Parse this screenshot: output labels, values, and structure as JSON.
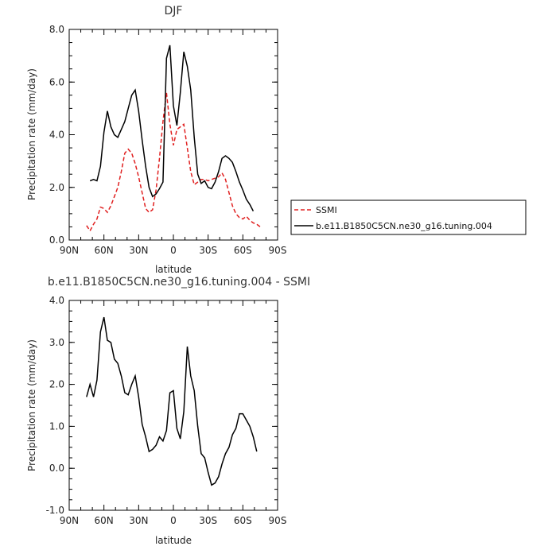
{
  "chart_data": [
    {
      "type": "line",
      "title": "DJF",
      "xlabel": "latitude",
      "ylabel": "Precipitation rate (mm/day)",
      "xlim": [
        90,
        -90
      ],
      "ylim": [
        0.0,
        8.0
      ],
      "xticks": [
        {
          "v": 90,
          "label": "90N"
        },
        {
          "v": 60,
          "label": "60N"
        },
        {
          "v": 30,
          "label": "30N"
        },
        {
          "v": 0,
          "label": "0"
        },
        {
          "v": -30,
          "label": "30S"
        },
        {
          "v": -60,
          "label": "60S"
        },
        {
          "v": -90,
          "label": "90S"
        }
      ],
      "yticks": [
        {
          "v": 0.0,
          "label": "0.0"
        },
        {
          "v": 2.0,
          "label": "2.0"
        },
        {
          "v": 4.0,
          "label": "4.0"
        },
        {
          "v": 6.0,
          "label": "6.0"
        },
        {
          "v": 8.0,
          "label": "8.0"
        }
      ],
      "grid": false,
      "legend": "right, outside plot",
      "series": [
        {
          "name": "SSMI",
          "color": "#e02020",
          "dash": true,
          "x": [
            75,
            72,
            69,
            66,
            63,
            60,
            57,
            54,
            51,
            48,
            45,
            42,
            39,
            36,
            33,
            30,
            27,
            24,
            21,
            18,
            15,
            12,
            9,
            6,
            3,
            0,
            -3,
            -6,
            -9,
            -12,
            -15,
            -18,
            -21,
            -24,
            -27,
            -30,
            -33,
            -36,
            -39,
            -42,
            -45,
            -48,
            -51,
            -54,
            -57,
            -60,
            -63,
            -66,
            -69,
            -72,
            -75
          ],
          "values": [
            0.55,
            0.35,
            0.6,
            0.8,
            1.25,
            1.2,
            1.05,
            1.3,
            1.65,
            2.0,
            2.6,
            3.3,
            3.45,
            3.3,
            2.9,
            2.4,
            1.8,
            1.2,
            1.05,
            1.15,
            1.9,
            3.1,
            4.5,
            5.6,
            4.4,
            3.6,
            4.2,
            4.3,
            4.4,
            3.5,
            2.6,
            2.1,
            2.2,
            2.3,
            2.3,
            2.25,
            2.3,
            2.35,
            2.4,
            2.55,
            2.3,
            1.8,
            1.3,
            1.0,
            0.85,
            0.8,
            0.9,
            0.75,
            0.65,
            0.6,
            0.5
          ]
        },
        {
          "name": "b.e11.B1850C5CN.ne30_g16.tuning.004",
          "color": "#000000",
          "dash": false,
          "x": [
            72,
            69,
            66,
            63,
            60,
            57,
            54,
            51,
            48,
            45,
            42,
            39,
            36,
            33,
            30,
            27,
            24,
            21,
            18,
            15,
            12,
            9,
            6,
            3,
            0,
            -3,
            -6,
            -9,
            -12,
            -15,
            -18,
            -21,
            -24,
            -27,
            -30,
            -33,
            -36,
            -39,
            -42,
            -45,
            -48,
            -51,
            -54,
            -57,
            -60,
            -63,
            -66,
            -69
          ],
          "values": [
            2.25,
            2.3,
            2.25,
            2.8,
            4.1,
            4.9,
            4.3,
            4.0,
            3.9,
            4.2,
            4.5,
            5.0,
            5.5,
            5.7,
            4.9,
            3.8,
            2.8,
            2.0,
            1.65,
            1.75,
            1.95,
            2.2,
            6.9,
            7.4,
            5.1,
            4.35,
            5.6,
            7.15,
            6.6,
            5.7,
            3.9,
            2.5,
            2.15,
            2.25,
            2.0,
            1.95,
            2.2,
            2.6,
            3.1,
            3.2,
            3.1,
            2.95,
            2.6,
            2.2,
            1.9,
            1.55,
            1.35,
            1.1
          ]
        }
      ]
    },
    {
      "type": "line",
      "title": "b.e11.B1850C5CN.ne30_g16.tuning.004 - SSMI",
      "xlabel": "latitude",
      "ylabel": "Precipitation rate (mm/day)",
      "xlim": [
        90,
        -90
      ],
      "ylim": [
        -1.0,
        4.0
      ],
      "xticks": [
        {
          "v": 90,
          "label": "90N"
        },
        {
          "v": 60,
          "label": "60N"
        },
        {
          "v": 30,
          "label": "30N"
        },
        {
          "v": 0,
          "label": "0"
        },
        {
          "v": -30,
          "label": "30S"
        },
        {
          "v": -60,
          "label": "60S"
        },
        {
          "v": -90,
          "label": "90S"
        }
      ],
      "yticks": [
        {
          "v": -1.0,
          "label": "-1.0"
        },
        {
          "v": 0.0,
          "label": "0.0"
        },
        {
          "v": 1.0,
          "label": "1.0"
        },
        {
          "v": 2.0,
          "label": "2.0"
        },
        {
          "v": 3.0,
          "label": "3.0"
        },
        {
          "v": 4.0,
          "label": "4.0"
        }
      ],
      "grid": false,
      "series": [
        {
          "color": "#000000",
          "dash": false,
          "x": [
            75,
            72,
            69,
            66,
            63,
            60,
            57,
            54,
            51,
            48,
            45,
            42,
            39,
            36,
            33,
            30,
            27,
            24,
            21,
            18,
            15,
            12,
            9,
            6,
            3,
            0,
            -3,
            -6,
            -9,
            -12,
            -15,
            -18,
            -21,
            -24,
            -27,
            -30,
            -33,
            -36,
            -39,
            -42,
            -45,
            -48,
            -51,
            -54,
            -57,
            -60,
            -63,
            -66,
            -69,
            -72
          ],
          "values": [
            1.7,
            2.0,
            1.7,
            2.1,
            3.25,
            3.6,
            3.05,
            3.0,
            2.6,
            2.5,
            2.2,
            1.8,
            1.75,
            2.0,
            2.2,
            1.7,
            1.05,
            0.75,
            0.4,
            0.45,
            0.55,
            0.75,
            0.65,
            0.9,
            1.8,
            1.85,
            0.95,
            0.7,
            1.35,
            2.9,
            2.2,
            1.85,
            1.0,
            0.35,
            0.25,
            -0.1,
            -0.4,
            -0.35,
            -0.2,
            0.1,
            0.35,
            0.5,
            0.8,
            0.95,
            1.3,
            1.3,
            1.15,
            1.0,
            0.75,
            0.4
          ]
        }
      ]
    }
  ]
}
